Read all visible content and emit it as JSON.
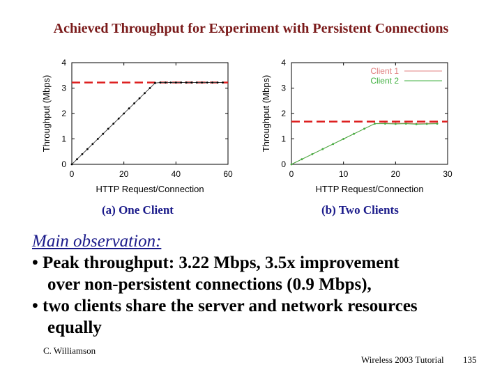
{
  "slide": {
    "title": "Achieved Throughput for Experiment with Persistent Connections",
    "observation_heading": "Main observation:",
    "observations": [
      "• Peak throughput: 3.22 Mbps, 3.5x improvement",
      "over non-persistent connections (0.9 Mbps),",
      "• two clients share the server and network resources",
      "equally"
    ],
    "author": "C. Williamson",
    "footer": "Wireless 2003 Tutorial",
    "page_number": "135"
  },
  "colors": {
    "reference_line": "#dd2020",
    "client1": "#e08080",
    "client2": "#40b040",
    "caption": "#1a1a8a"
  },
  "chart_data": [
    {
      "type": "line",
      "caption": "(a) One Client",
      "xlabel": "HTTP Request/Connection",
      "ylabel": "Throughput (Mbps)",
      "xlim": [
        0,
        60
      ],
      "ylim": [
        0,
        4
      ],
      "xticks": [
        0,
        20,
        40,
        60
      ],
      "yticks": [
        0,
        1,
        2,
        3,
        4
      ],
      "reference_line": {
        "y": 3.22,
        "style": "dashed"
      },
      "series": [
        {
          "name": "Client 1",
          "x": [
            0,
            2,
            4,
            6,
            8,
            10,
            12,
            14,
            16,
            18,
            20,
            22,
            24,
            26,
            28,
            30,
            32,
            34,
            36,
            38,
            40,
            42,
            44,
            46,
            48,
            50,
            52,
            54,
            56,
            58
          ],
          "y": [
            0,
            0.2,
            0.4,
            0.6,
            0.8,
            1.0,
            1.2,
            1.4,
            1.6,
            1.8,
            2.0,
            2.2,
            2.4,
            2.6,
            2.8,
            3.0,
            3.2,
            3.22,
            3.22,
            3.22,
            3.22,
            3.22,
            3.22,
            3.22,
            3.22,
            3.22,
            3.22,
            3.22,
            3.22,
            3.22
          ]
        }
      ]
    },
    {
      "type": "line",
      "caption": "(b) Two Clients",
      "xlabel": "HTTP Request/Connection",
      "ylabel": "Throughput (Mbps)",
      "xlim": [
        0,
        30
      ],
      "ylim": [
        0,
        4
      ],
      "xticks": [
        0,
        10,
        20,
        30
      ],
      "yticks": [
        0,
        1,
        2,
        3,
        4
      ],
      "legend": "top-right",
      "reference_line": {
        "y": 1.68,
        "style": "dashed"
      },
      "series": [
        {
          "name": "Client 1",
          "x": [
            0,
            2,
            4,
            6,
            8,
            10,
            12,
            14,
            16,
            18,
            20,
            22,
            24,
            26,
            28
          ],
          "y": [
            0,
            0.2,
            0.4,
            0.6,
            0.8,
            1.0,
            1.2,
            1.4,
            1.6,
            1.62,
            1.61,
            1.62,
            1.6,
            1.61,
            1.62
          ]
        },
        {
          "name": "Client 2",
          "x": [
            0,
            2,
            4,
            6,
            8,
            10,
            12,
            14,
            16,
            18,
            20,
            22,
            24,
            26,
            28
          ],
          "y": [
            0,
            0.2,
            0.4,
            0.6,
            0.8,
            1.0,
            1.2,
            1.4,
            1.6,
            1.6,
            1.59,
            1.6,
            1.58,
            1.59,
            1.6
          ]
        }
      ]
    }
  ]
}
